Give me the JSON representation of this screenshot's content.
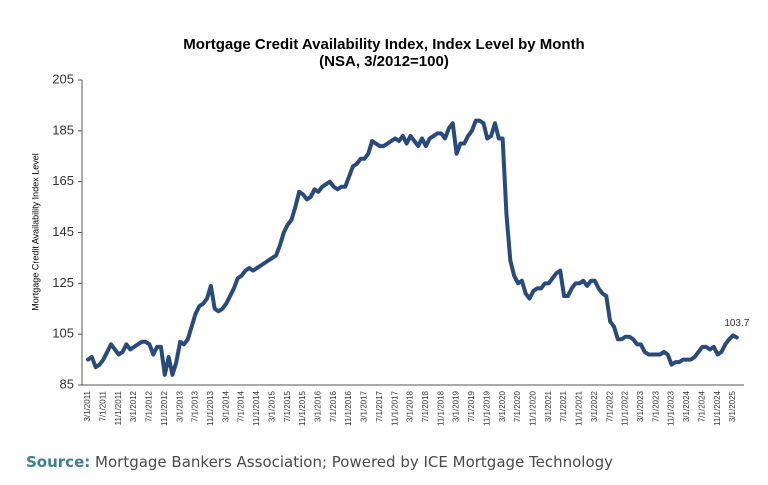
{
  "chart_data": {
    "type": "line",
    "title": "Mortgage Credit Availability Index, Index Level by Month",
    "subtitle": "(NSA, 3/2012=100)",
    "y_label": "Mortgage Credit Availability Index Level",
    "categories": [
      "3/1/2011",
      null,
      null,
      null,
      "7/1/2011",
      null,
      null,
      null,
      "11/1/2011",
      null,
      null,
      null,
      "3/1/2012",
      null,
      null,
      null,
      "7/1/2012",
      null,
      null,
      null,
      "11/1/2012",
      null,
      null,
      null,
      "3/1/2013",
      null,
      null,
      null,
      "7/1/2013",
      null,
      null,
      null,
      "11/1/2013",
      null,
      null,
      null,
      "3/1/2014",
      null,
      null,
      null,
      "7/1/2014",
      null,
      null,
      null,
      "11/1/2014",
      null,
      null,
      null,
      "3/1/2015",
      null,
      null,
      null,
      "7/1/2015",
      null,
      null,
      null,
      "11/1/2015",
      null,
      null,
      null,
      "3/1/2016",
      null,
      null,
      null,
      "7/1/2016",
      null,
      null,
      null,
      "11/1/2016",
      null,
      null,
      null,
      "3/1/2017",
      null,
      null,
      null,
      "7/1/2017",
      null,
      null,
      null,
      "11/1/2017",
      null,
      null,
      null,
      "3/1/2018",
      null,
      null,
      null,
      "7/1/2018",
      null,
      null,
      null,
      "11/1/2018",
      null,
      null,
      null,
      "3/1/2019",
      null,
      null,
      null,
      "7/1/2019",
      null,
      null,
      null,
      "11/1/2019",
      null,
      null,
      null,
      "3/1/2020",
      null,
      null,
      null,
      "7/1/2020",
      null,
      null,
      null,
      "11/1/2020",
      null,
      null,
      null,
      "3/1/2021",
      null,
      null,
      null,
      "7/1/2021",
      null,
      null,
      null,
      "11/1/2021",
      null,
      null,
      null,
      "3/1/2022",
      null,
      null,
      null,
      "7/1/2022",
      null,
      null,
      null,
      "11/1/2022",
      null,
      null,
      null,
      "3/1/2023",
      null,
      null,
      null,
      "7/1/2023",
      null,
      null,
      null,
      "11/1/2023",
      null,
      null,
      null,
      "3/1/2024",
      null,
      null,
      null,
      "7/1/2024",
      null,
      null,
      null,
      "11/1/2024",
      null,
      null,
      null,
      "3/1/2025",
      null
    ],
    "series": [
      {
        "name": "Mortgage Credit Availability Index",
        "color": "#2b4a7c",
        "values": [
          95,
          96,
          92,
          93,
          95,
          98,
          101,
          99,
          97,
          98,
          101,
          99,
          100,
          101,
          102,
          102,
          101,
          97,
          100,
          100,
          89,
          96,
          89,
          94,
          102,
          101,
          103,
          108,
          113,
          116,
          117,
          119,
          124,
          115,
          114,
          115,
          117,
          120,
          123,
          127,
          128,
          130,
          131,
          130,
          131,
          132,
          133,
          134,
          135,
          136,
          140,
          145,
          148,
          150,
          155,
          161,
          160,
          158,
          159,
          162,
          161,
          163,
          164,
          165,
          163,
          162,
          163,
          163,
          167,
          171,
          172,
          174,
          174,
          176,
          181,
          180,
          179,
          179,
          180,
          181,
          182,
          181,
          183,
          180,
          183,
          181,
          179,
          182,
          179,
          182,
          183,
          184,
          184,
          182,
          186,
          188,
          176,
          180,
          180,
          183,
          185,
          189,
          189,
          188,
          182,
          183,
          188,
          182,
          182,
          152,
          134,
          128,
          125,
          126,
          121,
          119,
          122,
          123,
          123,
          125,
          125,
          127,
          129,
          130,
          120,
          120,
          123,
          125,
          125,
          126,
          124,
          126,
          126,
          123,
          121,
          120,
          110,
          108,
          103,
          103,
          104,
          104,
          103,
          101,
          101,
          98,
          97,
          97,
          97,
          97,
          98,
          97,
          93,
          94,
          94,
          95,
          95,
          95,
          96,
          98,
          100,
          100,
          99,
          100,
          97,
          98,
          101,
          103,
          104.5,
          103.7
        ]
      }
    ],
    "ylim": [
      85,
      205
    ],
    "yticks": [
      85,
      105,
      125,
      145,
      165,
      185,
      205
    ],
    "source_label": "Source:",
    "source": "Mortgage Bankers Association; Powered by ICE Mortgage Technology"
  }
}
